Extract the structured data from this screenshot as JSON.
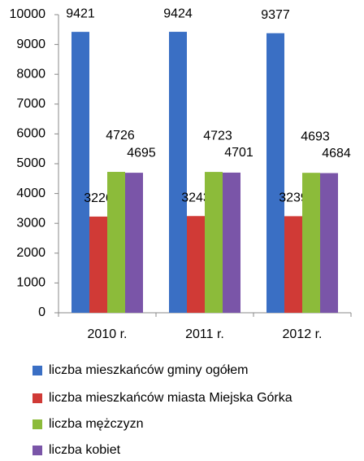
{
  "chart_data": {
    "type": "bar",
    "categories": [
      "2010 r.",
      "2011 r.",
      "2012 r."
    ],
    "series": [
      {
        "name": "liczba mieszkańców gminy ogółem",
        "color": "#3a6fc4",
        "values": [
          9421,
          9424,
          9377
        ]
      },
      {
        "name": "liczba mieszkańców miasta Miejska Górka",
        "color": "#d03a36",
        "values": [
          3226,
          3243,
          3239
        ]
      },
      {
        "name": "liczba mężczyzn",
        "color": "#8cbb3a",
        "values": [
          4726,
          4723,
          4693
        ]
      },
      {
        "name": "liczba kobiet",
        "color": "#7a55a8",
        "values": [
          4695,
          4701,
          4684
        ]
      }
    ],
    "ylim": [
      0,
      10000
    ],
    "yticks": [
      0,
      1000,
      2000,
      3000,
      4000,
      5000,
      6000,
      7000,
      8000,
      9000,
      10000
    ],
    "legend": "bottom"
  }
}
